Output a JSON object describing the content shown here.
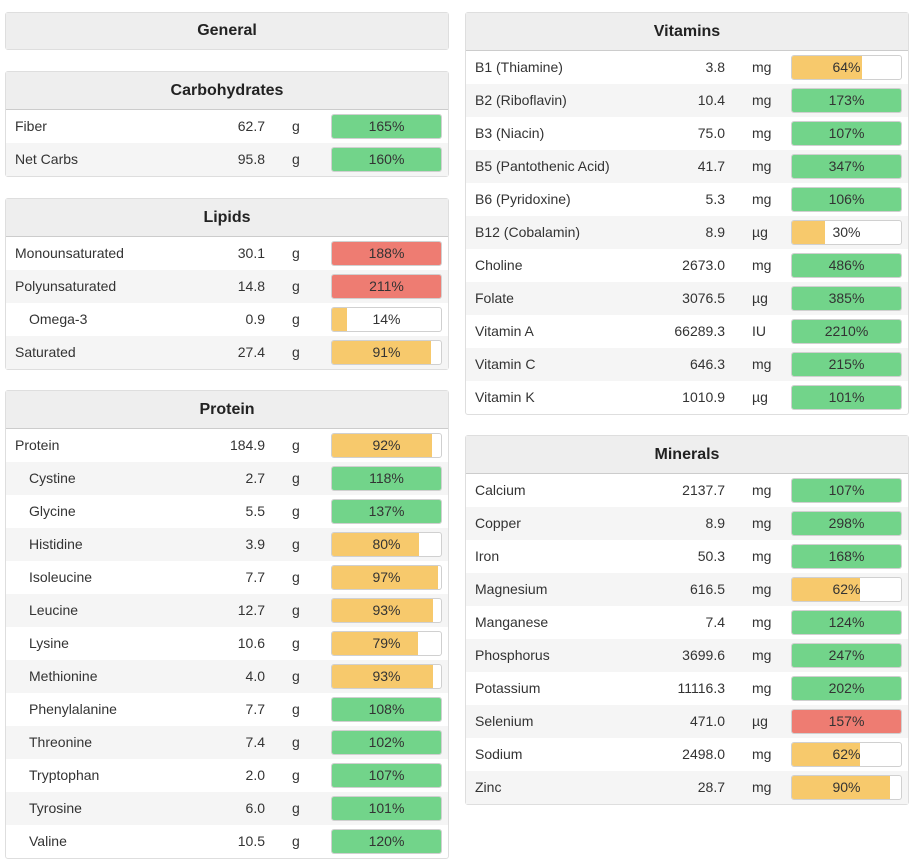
{
  "colors": {
    "green": "#72d48a",
    "yellow": "#f7c96c",
    "red": "#ee7c72"
  },
  "panels": {
    "general": {
      "title": "General",
      "rows": []
    },
    "carbohydrates": {
      "title": "Carbohydrates",
      "rows": [
        {
          "name": "Fiber",
          "amount": "62.7",
          "unit": "g",
          "pct": 165,
          "label": "165%",
          "status": "green",
          "indent": false
        },
        {
          "name": "Net Carbs",
          "amount": "95.8",
          "unit": "g",
          "pct": 160,
          "label": "160%",
          "status": "green",
          "indent": false
        }
      ]
    },
    "lipids": {
      "title": "Lipids",
      "rows": [
        {
          "name": "Monounsaturated",
          "amount": "30.1",
          "unit": "g",
          "pct": 188,
          "label": "188%",
          "status": "red",
          "indent": false
        },
        {
          "name": "Polyunsaturated",
          "amount": "14.8",
          "unit": "g",
          "pct": 211,
          "label": "211%",
          "status": "red",
          "indent": false
        },
        {
          "name": "Omega-3",
          "amount": "0.9",
          "unit": "g",
          "pct": 14,
          "label": "14%",
          "status": "yellow",
          "indent": true
        },
        {
          "name": "Saturated",
          "amount": "27.4",
          "unit": "g",
          "pct": 91,
          "label": "91%",
          "status": "yellow",
          "indent": false
        }
      ]
    },
    "protein": {
      "title": "Protein",
      "rows": [
        {
          "name": "Protein",
          "amount": "184.9",
          "unit": "g",
          "pct": 92,
          "label": "92%",
          "status": "yellow",
          "indent": false
        },
        {
          "name": "Cystine",
          "amount": "2.7",
          "unit": "g",
          "pct": 118,
          "label": "118%",
          "status": "green",
          "indent": true
        },
        {
          "name": "Glycine",
          "amount": "5.5",
          "unit": "g",
          "pct": 137,
          "label": "137%",
          "status": "green",
          "indent": true
        },
        {
          "name": "Histidine",
          "amount": "3.9",
          "unit": "g",
          "pct": 80,
          "label": "80%",
          "status": "yellow",
          "indent": true
        },
        {
          "name": "Isoleucine",
          "amount": "7.7",
          "unit": "g",
          "pct": 97,
          "label": "97%",
          "status": "yellow",
          "indent": true
        },
        {
          "name": "Leucine",
          "amount": "12.7",
          "unit": "g",
          "pct": 93,
          "label": "93%",
          "status": "yellow",
          "indent": true
        },
        {
          "name": "Lysine",
          "amount": "10.6",
          "unit": "g",
          "pct": 79,
          "label": "79%",
          "status": "yellow",
          "indent": true
        },
        {
          "name": "Methionine",
          "amount": "4.0",
          "unit": "g",
          "pct": 93,
          "label": "93%",
          "status": "yellow",
          "indent": true
        },
        {
          "name": "Phenylalanine",
          "amount": "7.7",
          "unit": "g",
          "pct": 108,
          "label": "108%",
          "status": "green",
          "indent": true
        },
        {
          "name": "Threonine",
          "amount": "7.4",
          "unit": "g",
          "pct": 102,
          "label": "102%",
          "status": "green",
          "indent": true
        },
        {
          "name": "Tryptophan",
          "amount": "2.0",
          "unit": "g",
          "pct": 107,
          "label": "107%",
          "status": "green",
          "indent": true
        },
        {
          "name": "Tyrosine",
          "amount": "6.0",
          "unit": "g",
          "pct": 101,
          "label": "101%",
          "status": "green",
          "indent": true
        },
        {
          "name": "Valine",
          "amount": "10.5",
          "unit": "g",
          "pct": 120,
          "label": "120%",
          "status": "green",
          "indent": true
        }
      ]
    },
    "vitamins": {
      "title": "Vitamins",
      "rows": [
        {
          "name": "B1 (Thiamine)",
          "amount": "3.8",
          "unit": "mg",
          "pct": 64,
          "label": "64%",
          "status": "yellow",
          "indent": false
        },
        {
          "name": "B2 (Riboflavin)",
          "amount": "10.4",
          "unit": "mg",
          "pct": 173,
          "label": "173%",
          "status": "green",
          "indent": false
        },
        {
          "name": "B3 (Niacin)",
          "amount": "75.0",
          "unit": "mg",
          "pct": 107,
          "label": "107%",
          "status": "green",
          "indent": false
        },
        {
          "name": "B5 (Pantothenic Acid)",
          "amount": "41.7",
          "unit": "mg",
          "pct": 347,
          "label": "347%",
          "status": "green",
          "indent": false
        },
        {
          "name": "B6 (Pyridoxine)",
          "amount": "5.3",
          "unit": "mg",
          "pct": 106,
          "label": "106%",
          "status": "green",
          "indent": false
        },
        {
          "name": "B12 (Cobalamin)",
          "amount": "8.9",
          "unit": "µg",
          "pct": 30,
          "label": "30%",
          "status": "yellow",
          "indent": false
        },
        {
          "name": "Choline",
          "amount": "2673.0",
          "unit": "mg",
          "pct": 486,
          "label": "486%",
          "status": "green",
          "indent": false
        },
        {
          "name": "Folate",
          "amount": "3076.5",
          "unit": "µg",
          "pct": 385,
          "label": "385%",
          "status": "green",
          "indent": false
        },
        {
          "name": "Vitamin A",
          "amount": "66289.3",
          "unit": "IU",
          "pct": 2210,
          "label": "2210%",
          "status": "green",
          "indent": false
        },
        {
          "name": "Vitamin C",
          "amount": "646.3",
          "unit": "mg",
          "pct": 215,
          "label": "215%",
          "status": "green",
          "indent": false
        },
        {
          "name": "Vitamin K",
          "amount": "1010.9",
          "unit": "µg",
          "pct": 101,
          "label": "101%",
          "status": "green",
          "indent": false
        }
      ]
    },
    "minerals": {
      "title": "Minerals",
      "rows": [
        {
          "name": "Calcium",
          "amount": "2137.7",
          "unit": "mg",
          "pct": 107,
          "label": "107%",
          "status": "green",
          "indent": false
        },
        {
          "name": "Copper",
          "amount": "8.9",
          "unit": "mg",
          "pct": 298,
          "label": "298%",
          "status": "green",
          "indent": false
        },
        {
          "name": "Iron",
          "amount": "50.3",
          "unit": "mg",
          "pct": 168,
          "label": "168%",
          "status": "green",
          "indent": false
        },
        {
          "name": "Magnesium",
          "amount": "616.5",
          "unit": "mg",
          "pct": 62,
          "label": "62%",
          "status": "yellow",
          "indent": false
        },
        {
          "name": "Manganese",
          "amount": "7.4",
          "unit": "mg",
          "pct": 124,
          "label": "124%",
          "status": "green",
          "indent": false
        },
        {
          "name": "Phosphorus",
          "amount": "3699.6",
          "unit": "mg",
          "pct": 247,
          "label": "247%",
          "status": "green",
          "indent": false
        },
        {
          "name": "Potassium",
          "amount": "11116.3",
          "unit": "mg",
          "pct": 202,
          "label": "202%",
          "status": "green",
          "indent": false
        },
        {
          "name": "Selenium",
          "amount": "471.0",
          "unit": "µg",
          "pct": 157,
          "label": "157%",
          "status": "red",
          "indent": false
        },
        {
          "name": "Sodium",
          "amount": "2498.0",
          "unit": "mg",
          "pct": 62,
          "label": "62%",
          "status": "yellow",
          "indent": false
        },
        {
          "name": "Zinc",
          "amount": "28.7",
          "unit": "mg",
          "pct": 90,
          "label": "90%",
          "status": "yellow",
          "indent": false
        }
      ]
    }
  }
}
